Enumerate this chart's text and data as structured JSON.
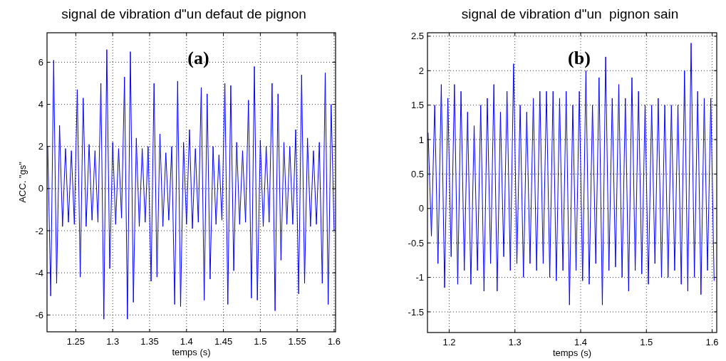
{
  "chart_data": [
    {
      "type": "line",
      "title": "signal de vibration d\"un defaut de pignon",
      "xlabel": "temps (s)",
      "ylabel": "ACC. \"gs\"",
      "annotations": [
        "(a)"
      ],
      "x": [
        1.212,
        1.216,
        1.22,
        1.224,
        1.228,
        1.232,
        1.236,
        1.24,
        1.244,
        1.248,
        1.252,
        1.256,
        1.26,
        1.264,
        1.268,
        1.272,
        1.276,
        1.28,
        1.284,
        1.288,
        1.292,
        1.296,
        1.3,
        1.304,
        1.308,
        1.312,
        1.316,
        1.32,
        1.324,
        1.328,
        1.332,
        1.336,
        1.34,
        1.344,
        1.348,
        1.352,
        1.356,
        1.36,
        1.364,
        1.368,
        1.372,
        1.376,
        1.38,
        1.384,
        1.388,
        1.392,
        1.396,
        1.4,
        1.404,
        1.408,
        1.412,
        1.416,
        1.42,
        1.424,
        1.428,
        1.432,
        1.436,
        1.44,
        1.444,
        1.448,
        1.452,
        1.456,
        1.46,
        1.464,
        1.468,
        1.472,
        1.476,
        1.48,
        1.484,
        1.488,
        1.492,
        1.496,
        1.5,
        1.504,
        1.508,
        1.512,
        1.516,
        1.52,
        1.524,
        1.528,
        1.532,
        1.536,
        1.54,
        1.544,
        1.548,
        1.552,
        1.556,
        1.56,
        1.564,
        1.568,
        1.572,
        1.576,
        1.58,
        1.584,
        1.588,
        1.592,
        1.596,
        1.6
      ],
      "series": [
        {
          "color": "#0000ff",
          "values": [
            2.0,
            -5.1,
            6.1,
            -4.5,
            3.0,
            -1.8,
            1.9,
            -1.6,
            1.8,
            -1.7,
            4.7,
            -4.2,
            4.3,
            -1.8,
            2.1,
            -1.5,
            1.8,
            -1.6,
            5.0,
            -6.2,
            6.6,
            -3.8,
            2.2,
            -1.7,
            1.9,
            -1.4,
            5.3,
            -6.2,
            6.5,
            -5.4,
            2.4,
            -1.8,
            1.9,
            -1.6,
            2.0,
            -4.4,
            5.0,
            -4.2,
            2.6,
            -1.8,
            1.7,
            -1.5,
            2.0,
            -5.5,
            5.1,
            -5.6,
            2.2,
            -1.7,
            2.8,
            -1.9,
            1.9,
            -1.6,
            4.8,
            -5.3,
            4.5,
            -4.3,
            2.0,
            -1.7,
            1.6,
            -1.5,
            5.0,
            -5.5,
            4.9,
            -3.9,
            2.2,
            -1.7,
            1.8,
            -1.6,
            4.2,
            -5.2,
            5.8,
            -5.3,
            2.3,
            -1.8,
            2.0,
            -1.6,
            5.0,
            -5.8,
            4.5,
            -3.4,
            2.2,
            -1.7,
            2.0,
            -1.7,
            2.8,
            -5.0,
            5.4,
            -4.5,
            2.4,
            -1.8,
            1.8,
            -1.7,
            2.2,
            -4.5,
            5.5,
            -5.5,
            4.0,
            -2.0
          ]
        }
      ],
      "xlim": [
        1.211,
        1.602
      ],
      "ylim": [
        -6.8,
        7.4
      ],
      "xticks": [
        {
          "value": 1.25,
          "label": "1.25"
        },
        1.3,
        {
          "value": 1.35,
          "label": "1.35"
        },
        1.4,
        {
          "value": 1.45,
          "label": "1.45"
        },
        1.5,
        {
          "value": 1.55,
          "label": "1.55"
        },
        1.6
      ],
      "yticks": [
        -6,
        -4,
        -2,
        0,
        2,
        4,
        6
      ],
      "grid": true,
      "marker": "none",
      "line_style": "solid"
    },
    {
      "type": "line",
      "title": "signal de vibration d\"un  pignon sain",
      "xlabel": "temps (s)",
      "annotations": [
        "(b)"
      ],
      "x": [
        1.168,
        1.173,
        1.178,
        1.183,
        1.188,
        1.193,
        1.198,
        1.203,
        1.208,
        1.213,
        1.218,
        1.223,
        1.228,
        1.233,
        1.238,
        1.243,
        1.248,
        1.253,
        1.258,
        1.263,
        1.268,
        1.273,
        1.278,
        1.283,
        1.288,
        1.293,
        1.298,
        1.303,
        1.308,
        1.313,
        1.318,
        1.323,
        1.328,
        1.333,
        1.338,
        1.343,
        1.348,
        1.353,
        1.358,
        1.363,
        1.368,
        1.373,
        1.378,
        1.383,
        1.388,
        1.393,
        1.398,
        1.403,
        1.408,
        1.413,
        1.418,
        1.423,
        1.428,
        1.433,
        1.438,
        1.443,
        1.448,
        1.453,
        1.458,
        1.463,
        1.468,
        1.473,
        1.478,
        1.483,
        1.488,
        1.493,
        1.498,
        1.503,
        1.508,
        1.513,
        1.518,
        1.523,
        1.528,
        1.533,
        1.538,
        1.543,
        1.548,
        1.553,
        1.558,
        1.563,
        1.568,
        1.573,
        1.578,
        1.583,
        1.588,
        1.593,
        1.598,
        1.603
      ],
      "series": [
        {
          "color": "#0000ff",
          "values": [
            1.1,
            -0.4,
            1.5,
            -0.8,
            1.8,
            -1.15,
            1.6,
            -0.7,
            1.8,
            -1.1,
            1.7,
            -0.9,
            1.4,
            -1.1,
            1.2,
            -0.9,
            1.5,
            -1.2,
            1.6,
            -0.8,
            1.8,
            -1.2,
            1.4,
            -0.7,
            1.7,
            -0.9,
            2.1,
            -0.8,
            1.5,
            -1.0,
            1.4,
            -0.8,
            1.6,
            -0.9,
            1.7,
            -0.8,
            1.7,
            -1.0,
            1.7,
            -1.05,
            1.6,
            -0.9,
            1.7,
            -1.4,
            1.5,
            -0.9,
            1.7,
            -1.05,
            2.0,
            -1.1,
            1.5,
            -0.8,
            1.9,
            -1.4,
            2.2,
            -0.9,
            1.6,
            -0.85,
            1.8,
            -1.0,
            1.6,
            -1.2,
            1.9,
            -0.9,
            1.7,
            -0.95,
            1.5,
            -1.1,
            1.5,
            -0.8,
            1.6,
            -1.0,
            1.5,
            -1.0,
            1.5,
            -0.9,
            1.5,
            -1.1,
            2.0,
            -1.2,
            2.4,
            -1.0,
            1.7,
            -1.25,
            1.6,
            -0.9,
            1.6,
            -1.05
          ]
        }
      ],
      "xlim": [
        1.167,
        1.607
      ],
      "ylim": [
        -1.8,
        2.55
      ],
      "xticks": [
        1.2,
        1.3,
        1.4,
        1.5,
        1.6
      ],
      "yticks": [
        -1.5,
        -1,
        -0.5,
        0,
        0.5,
        1,
        1.5,
        2,
        2.5
      ],
      "grid": true,
      "marker": "none",
      "line_style": "solid"
    }
  ]
}
